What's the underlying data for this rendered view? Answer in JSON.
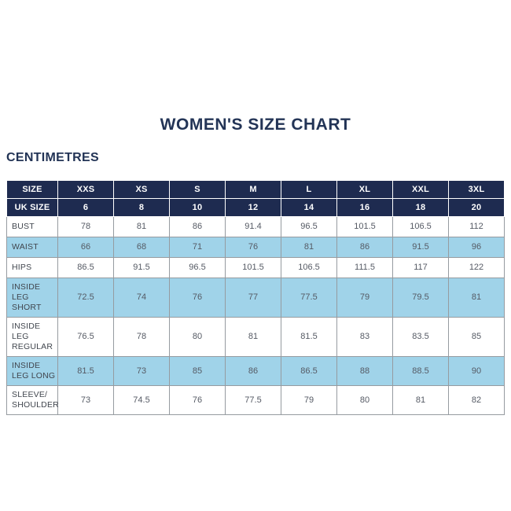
{
  "page": {
    "title": "WOMEN'S SIZE CHART",
    "unit_label": "CENTIMETRES"
  },
  "colors": {
    "navy_header": "#1e2b50",
    "shaded_row_blue": "#a0d3e9",
    "title_text": "#233456",
    "cell_text": "#555a64",
    "label_text": "#41464e",
    "border": "#969ba0"
  },
  "chart_data": {
    "type": "table",
    "title": "WOMEN'S SIZE CHART",
    "unit": "CENTIMETRES",
    "header_rows": [
      {
        "label": "SIZE",
        "values": [
          "XXS",
          "XS",
          "S",
          "M",
          "L",
          "XL",
          "XXL",
          "3XL"
        ]
      },
      {
        "label": "UK SIZE",
        "values": [
          "6",
          "8",
          "10",
          "12",
          "14",
          "16",
          "18",
          "20"
        ]
      }
    ],
    "rows": [
      {
        "label": "BUST",
        "shaded": false,
        "values": [
          "78",
          "81",
          "86",
          "91.4",
          "96.5",
          "101.5",
          "106.5",
          "112"
        ]
      },
      {
        "label": "WAIST",
        "shaded": true,
        "values": [
          "66",
          "68",
          "71",
          "76",
          "81",
          "86",
          "91.5",
          "96"
        ]
      },
      {
        "label": "HIPS",
        "shaded": false,
        "values": [
          "86.5",
          "91.5",
          "96.5",
          "101.5",
          "106.5",
          "111.5",
          "117",
          "122"
        ]
      },
      {
        "label": "INSIDE LEG SHORT",
        "shaded": true,
        "values": [
          "72.5",
          "74",
          "76",
          "77",
          "77.5",
          "79",
          "79.5",
          "81"
        ]
      },
      {
        "label": "INSIDE LEG REGULAR",
        "shaded": false,
        "values": [
          "76.5",
          "78",
          "80",
          "81",
          "81.5",
          "83",
          "83.5",
          "85"
        ]
      },
      {
        "label": "INSIDE LEG LONG",
        "shaded": true,
        "values": [
          "81.5",
          "73",
          "85",
          "86",
          "86.5",
          "88",
          "88.5",
          "90"
        ]
      },
      {
        "label": "SLEEVE/ SHOULDER",
        "shaded": false,
        "values": [
          "73",
          "74.5",
          "76",
          "77.5",
          "79",
          "80",
          "81",
          "82"
        ]
      }
    ]
  }
}
